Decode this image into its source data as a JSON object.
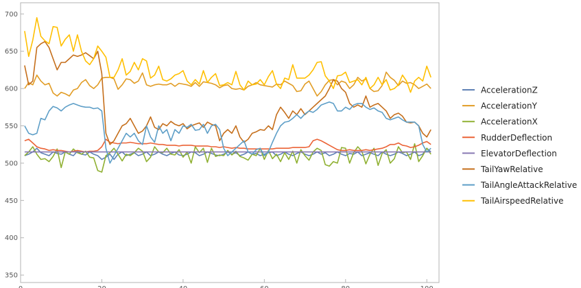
{
  "chart_data": {
    "type": "line",
    "title": "",
    "xlabel": "",
    "ylabel": "",
    "xlim": [
      0,
      103
    ],
    "ylim": [
      340,
      715
    ],
    "xticks": [
      0,
      20,
      40,
      60,
      80,
      100
    ],
    "xtick_labels": [
      "0",
      "20",
      "40",
      "60",
      "80",
      "100"
    ],
    "yticks": [
      350,
      400,
      450,
      500,
      550,
      600,
      650,
      700
    ],
    "ytick_labels": [
      "350",
      "400",
      "450",
      "500",
      "550",
      "600",
      "650",
      "700"
    ],
    "grid": false,
    "legend_position": "right",
    "x": [
      1,
      2,
      3,
      4,
      5,
      6,
      7,
      8,
      9,
      10,
      11,
      12,
      13,
      14,
      15,
      16,
      17,
      18,
      19,
      20,
      21,
      22,
      23,
      24,
      25,
      26,
      27,
      28,
      29,
      30,
      31,
      32,
      33,
      34,
      35,
      36,
      37,
      38,
      39,
      40,
      41,
      42,
      43,
      44,
      45,
      46,
      47,
      48,
      49,
      50,
      51,
      52,
      53,
      54,
      55,
      56,
      57,
      58,
      59,
      60,
      61,
      62,
      63,
      64,
      65,
      66,
      67,
      68,
      69,
      70,
      71,
      72,
      73,
      74,
      75,
      76,
      77,
      78,
      79,
      80,
      81,
      82,
      83,
      84,
      85,
      86,
      87,
      88,
      89,
      90,
      91,
      92,
      93,
      94,
      95,
      96,
      97,
      98,
      99,
      100,
      101
    ],
    "series": [
      {
        "name": "AccelerationZ",
        "color": "#5e81b5",
        "values": [
          510,
          512,
          515,
          520,
          514,
          512,
          510,
          515,
          513,
          512,
          515,
          512,
          510,
          516,
          512,
          511,
          515,
          512,
          510,
          505,
          508,
          512,
          505,
          512,
          515,
          510,
          512,
          514,
          510,
          512,
          515,
          510,
          512,
          515,
          512,
          510,
          513,
          515,
          511,
          510,
          512,
          515,
          514,
          510,
          512,
          515,
          513,
          511,
          510,
          512,
          515,
          512,
          514,
          510,
          512,
          515,
          512,
          513,
          510,
          512,
          514,
          515,
          510,
          512,
          515,
          512,
          510,
          513,
          515,
          512,
          510,
          512,
          515,
          512,
          514,
          510,
          512,
          515,
          512,
          510,
          513,
          512,
          515,
          510,
          512,
          514,
          512,
          510,
          515,
          512,
          510,
          512,
          515,
          513,
          510,
          512,
          515,
          510,
          512,
          520,
          515
        ]
      },
      {
        "name": "AccelerationY",
        "color": "#e19c24",
        "values": [
          600,
          608,
          605,
          618,
          610,
          605,
          607,
          594,
          590,
          595,
          593,
          590,
          598,
          600,
          608,
          612,
          604,
          600,
          605,
          614,
          615,
          615,
          613,
          599,
          605,
          613,
          612,
          607,
          610,
          621,
          605,
          603,
          605,
          606,
          605,
          605,
          607,
          603,
          607,
          606,
          605,
          603,
          608,
          603,
          609,
          608,
          607,
          605,
          601,
          604,
          605,
          600,
          599,
          600,
          598,
          603,
          605,
          608,
          605,
          604,
          603,
          602,
          606,
          605,
          610,
          607,
          604,
          596,
          597,
          606,
          610,
          600,
          590,
          596,
          605,
          611,
          612,
          605,
          610,
          608,
          600,
          605,
          615,
          610,
          613,
          600,
          596,
          597,
          604,
          622,
          615,
          611,
          604,
          610,
          607,
          608,
          605,
          600,
          603,
          606,
          600
        ]
      },
      {
        "name": "AccelerationX",
        "color": "#8fb032",
        "values": [
          510,
          515,
          522,
          512,
          505,
          506,
          502,
          509,
          519,
          494,
          515,
          512,
          519,
          514,
          512,
          516,
          508,
          507,
          490,
          488,
          510,
          514,
          520,
          512,
          503,
          512,
          510,
          514,
          520,
          516,
          502,
          508,
          522,
          515,
          514,
          520,
          512,
          511,
          518,
          508,
          515,
          500,
          522,
          514,
          520,
          501,
          520,
          509,
          511,
          510,
          517,
          511,
          516,
          509,
          507,
          504,
          512,
          510,
          520,
          505,
          517,
          506,
          512,
          502,
          514,
          505,
          516,
          500,
          518,
          510,
          504,
          515,
          520,
          517,
          498,
          496,
          502,
          500,
          521,
          520,
          500,
          514,
          522,
          516,
          499,
          512,
          520,
          497,
          513,
          518,
          500,
          506,
          522,
          514,
          515,
          505,
          526,
          502,
          510,
          520,
          512
        ]
      },
      {
        "name": "RudderDeflection",
        "color": "#eb6235",
        "values": [
          530,
          532,
          527,
          522,
          520,
          519,
          517,
          518,
          517,
          517,
          516,
          515,
          516,
          517,
          516,
          515,
          516,
          516,
          517,
          522,
          532,
          528,
          527,
          526,
          527,
          527,
          528,
          527,
          526,
          526,
          526,
          527,
          526,
          525,
          525,
          524,
          524,
          524,
          523,
          524,
          524,
          524,
          523,
          523,
          523,
          523,
          522,
          522,
          521,
          522,
          521,
          520,
          521,
          520,
          520,
          519,
          519,
          519,
          519,
          519,
          519,
          519,
          520,
          520,
          520,
          520,
          521,
          521,
          521,
          521,
          522,
          530,
          532,
          530,
          527,
          524,
          521,
          518,
          517,
          517,
          518,
          517,
          517,
          517,
          518,
          517,
          518,
          519,
          520,
          522,
          525,
          525,
          527,
          524,
          523,
          521,
          522,
          524,
          527,
          529,
          525
        ]
      },
      {
        "name": "ElevatorDeflection",
        "color": "#8778b3",
        "values": [
          515,
          515,
          515,
          515,
          515,
          515,
          515,
          515,
          515,
          515,
          515,
          515,
          515,
          515,
          515,
          515,
          515,
          515,
          515,
          515,
          515,
          515,
          515,
          515,
          515,
          515,
          515,
          515,
          515,
          515,
          515,
          515,
          515,
          515,
          515,
          515,
          515,
          515,
          515,
          515,
          515,
          515,
          515,
          515,
          515,
          515,
          515,
          515,
          515,
          515,
          515,
          515,
          515,
          515,
          515,
          515,
          515,
          515,
          515,
          515,
          515,
          515,
          515,
          515,
          515,
          515,
          515,
          515,
          515,
          515,
          515,
          515,
          515,
          515,
          515,
          515,
          515,
          515,
          515,
          515,
          515,
          515,
          515,
          515,
          515,
          515,
          515,
          515,
          515,
          515,
          515,
          515,
          515,
          515,
          515,
          515,
          515,
          515,
          515,
          515,
          515
        ]
      },
      {
        "name": "TailYawRelative",
        "color": "#c56e1a",
        "values": [
          631,
          605,
          610,
          655,
          660,
          663,
          655,
          640,
          625,
          635,
          635,
          640,
          645,
          643,
          645,
          648,
          644,
          640,
          650,
          620,
          540,
          525,
          530,
          540,
          550,
          553,
          560,
          550,
          540,
          543,
          550,
          562,
          548,
          545,
          553,
          550,
          556,
          552,
          550,
          553,
          546,
          550,
          552,
          554,
          548,
          555,
          552,
          550,
          530,
          540,
          545,
          540,
          550,
          535,
          528,
          532,
          540,
          542,
          545,
          544,
          550,
          545,
          565,
          575,
          568,
          560,
          570,
          565,
          573,
          565,
          570,
          575,
          580,
          585,
          590,
          600,
          612,
          610,
          600,
          595,
          580,
          575,
          578,
          575,
          590,
          575,
          578,
          580,
          575,
          570,
          560,
          565,
          567,
          563,
          555,
          554,
          555,
          550,
          540,
          535,
          545
        ]
      },
      {
        "name": "TailAngleAttackRelative",
        "color": "#5d9ec7",
        "values": [
          550,
          540,
          538,
          540,
          560,
          558,
          570,
          576,
          574,
          570,
          575,
          578,
          580,
          578,
          576,
          575,
          575,
          573,
          574,
          570,
          520,
          500,
          510,
          520,
          530,
          540,
          535,
          540,
          530,
          525,
          550,
          535,
          528,
          550,
          540,
          545,
          530,
          545,
          540,
          550,
          548,
          552,
          544,
          545,
          552,
          540,
          550,
          552,
          545,
          520,
          510,
          515,
          520,
          525,
          530,
          515,
          512,
          518,
          520,
          510,
          515,
          528,
          540,
          550,
          555,
          556,
          560,
          565,
          560,
          566,
          570,
          568,
          572,
          578,
          580,
          582,
          580,
          570,
          570,
          575,
          572,
          578,
          580,
          580,
          575,
          572,
          574,
          570,
          568,
          560,
          558,
          560,
          562,
          558,
          555,
          555,
          555,
          550,
          525,
          515,
          520
        ]
      },
      {
        "name": "TailAirspeedRelative",
        "color": "#ffbf00",
        "values": [
          677,
          643,
          665,
          695,
          670,
          664,
          660,
          683,
          682,
          657,
          666,
          672,
          650,
          672,
          650,
          637,
          632,
          640,
          657,
          650,
          642,
          615,
          615,
          625,
          640,
          618,
          623,
          635,
          625,
          640,
          637,
          614,
          618,
          630,
          612,
          610,
          613,
          618,
          620,
          624,
          610,
          605,
          612,
          606,
          624,
          608,
          615,
          620,
          604,
          605,
          608,
          605,
          623,
          605,
          598,
          610,
          605,
          606,
          612,
          605,
          616,
          624,
          606,
          600,
          614,
          612,
          632,
          614,
          614,
          614,
          618,
          625,
          635,
          636,
          617,
          610,
          600,
          617,
          618,
          622,
          608,
          610,
          612,
          605,
          615,
          600,
          605,
          615,
          605,
          612,
          598,
          600,
          605,
          618,
          610,
          595,
          610,
          615,
          610,
          630,
          615
        ]
      }
    ]
  }
}
